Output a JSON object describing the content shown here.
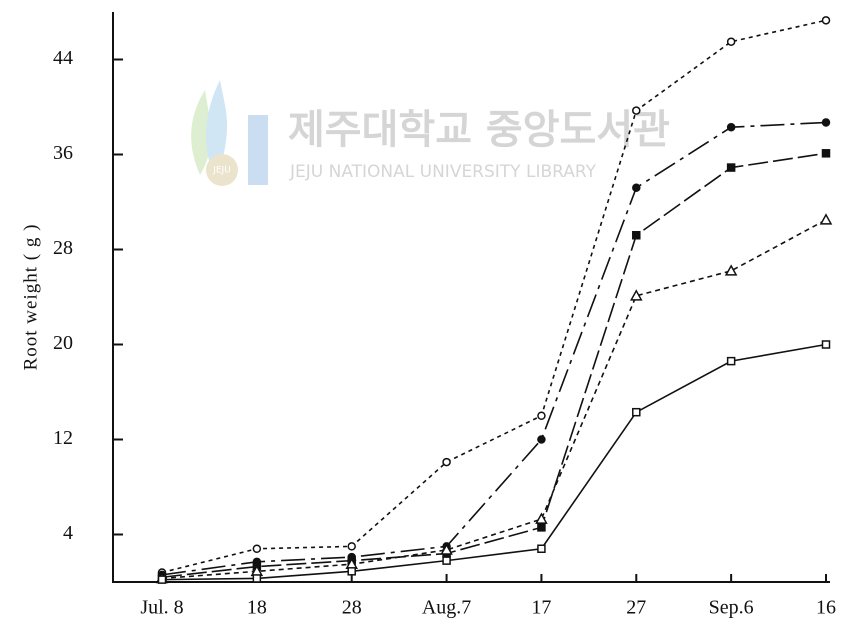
{
  "chart_data": {
    "type": "line",
    "y_label": "Root weight ( g )",
    "categories": [
      "Jul. 8",
      "18",
      "28",
      "Aug.7",
      "17",
      "27",
      "Sep.6",
      "16"
    ],
    "series": [
      {
        "color": "#111111",
        "marker": "open-circle",
        "dash": "4,4",
        "values": [
          0.8,
          2.8,
          3.0,
          10.1,
          14.0,
          39.7,
          45.5,
          47.3
        ]
      },
      {
        "color": "#111111",
        "marker": "filled-circle",
        "dash": "24,6,4,6",
        "values": [
          0.6,
          1.7,
          2.1,
          3.0,
          12.0,
          33.2,
          38.3,
          38.7
        ]
      },
      {
        "color": "#111111",
        "marker": "filled-square",
        "dash": "20,5",
        "values": [
          0.4,
          1.3,
          1.8,
          2.4,
          4.6,
          29.2,
          34.9,
          36.1
        ]
      },
      {
        "color": "#111111",
        "marker": "open-triangle",
        "dash": "5,4",
        "values": [
          0.3,
          0.9,
          1.5,
          2.7,
          5.3,
          24.1,
          26.2,
          30.5
        ]
      },
      {
        "color": "#111111",
        "marker": "open-square",
        "dash": "",
        "values": [
          0.2,
          0.3,
          0.9,
          1.8,
          2.8,
          14.3,
          18.6,
          20.0
        ]
      }
    ],
    "ylim": [
      0,
      48
    ],
    "yticks": [
      4,
      12,
      20,
      28,
      36,
      44
    ],
    "grid": false
  },
  "watermark": {
    "title": "제주대학교 중앙도서관",
    "subtitle": "JEJU NATIONAL UNIVERSITY LIBRARY",
    "logo_text": "JEJU"
  }
}
